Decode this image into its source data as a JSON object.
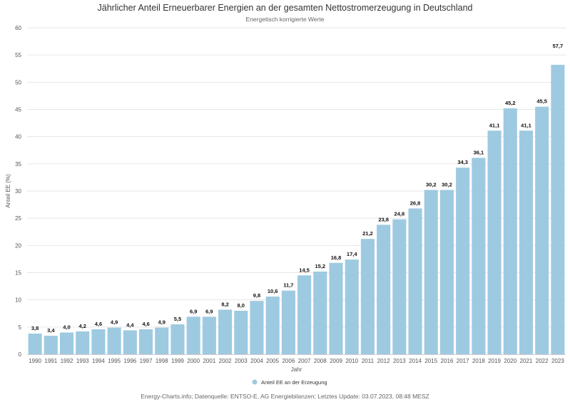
{
  "header": {
    "title": "Jährlicher Anteil Erneuerbarer Energien an der gesamten Nettostromerzeugung in Deutschland",
    "subtitle": "Energetisch korrigierte Werte"
  },
  "footer": {
    "source": "Energy-Charts.info; Datenquelle: ENTSO-E, AG Energiebilanzen; Letztes Update: 03.07.2023, 08:48 MESZ"
  },
  "colors": {
    "bar": "#9ecae1",
    "highlight_label": "#c00000",
    "grid": "#e6e6e6"
  },
  "chart_data": {
    "type": "bar",
    "xlabel": "Jahr",
    "ylabel": "Anteil EE (%)",
    "ylim": [
      0,
      60
    ],
    "yticks": [
      0,
      5,
      10,
      15,
      20,
      25,
      30,
      35,
      40,
      45,
      50,
      55,
      60
    ],
    "grid": true,
    "legend_position": "bottom-center",
    "categories": [
      "1990",
      "1991",
      "1992",
      "1993",
      "1994",
      "1995",
      "1996",
      "1997",
      "1998",
      "1999",
      "2000",
      "2001",
      "2002",
      "2003",
      "2004",
      "2005",
      "2006",
      "2007",
      "2008",
      "2009",
      "2010",
      "2011",
      "2012",
      "2013",
      "2014",
      "2015",
      "2016",
      "2017",
      "2018",
      "2019",
      "2020",
      "2021",
      "2022",
      "2023"
    ],
    "series": [
      {
        "name": "Anteil EE an der Erzeugung",
        "values": [
          3.8,
          3.4,
          4.0,
          4.2,
          4.6,
          4.9,
          4.4,
          4.6,
          4.9,
          5.5,
          6.9,
          6.9,
          8.2,
          8.0,
          9.8,
          10.6,
          11.7,
          14.5,
          15.2,
          16.8,
          17.4,
          21.2,
          23.8,
          24.8,
          26.8,
          30.2,
          30.2,
          34.3,
          36.1,
          41.1,
          45.2,
          41.1,
          45.5,
          57.7
        ],
        "labels": [
          "3,8",
          "3,4",
          "4,0",
          "4,2",
          "4,6",
          "4,9",
          "4,4",
          "4,6",
          "4,9",
          "5,5",
          "6,9",
          "6,9",
          "8,2",
          "8,0",
          "9,8",
          "10,6",
          "11,7",
          "14,5",
          "15,2",
          "16,8",
          "17,4",
          "21,2",
          "23,8",
          "24,8",
          "26,8",
          "30,2",
          "30,2",
          "34,3",
          "36,1",
          "41,1",
          "45,2",
          "41,1",
          "45,5",
          "57,7"
        ]
      }
    ],
    "highlight_index": 33
  }
}
